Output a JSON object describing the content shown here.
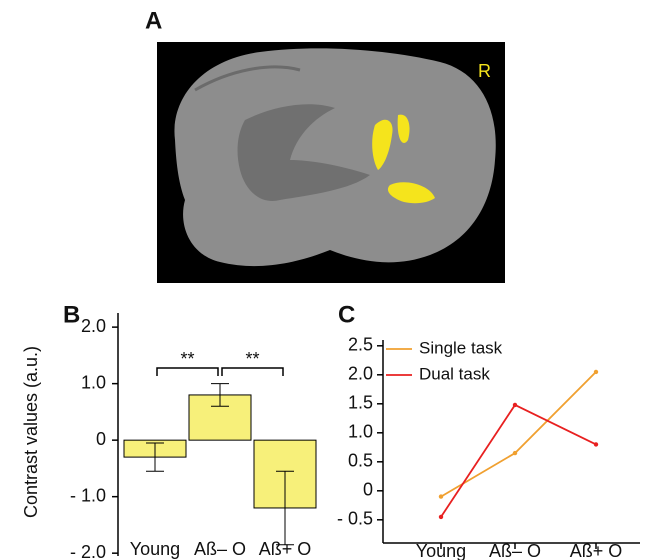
{
  "panel_labels": [
    "A",
    "B",
    "C"
  ],
  "brain_label": "R",
  "chart_data": [
    {
      "type": "bar",
      "ylabel": "Contrast values (a.u.)",
      "categories": [
        "Young",
        "Aß– O",
        "Aß+ O"
      ],
      "values": [
        -0.3,
        0.8,
        -1.2
      ],
      "errors": [
        0.25,
        0.2,
        0.65
      ],
      "color": "#f7f07a",
      "ylim": [
        -2.05,
        2.25
      ],
      "yticks": [
        {
          "value": 2,
          "label": "2.0"
        },
        {
          "value": 1,
          "label": "1.0"
        },
        0,
        {
          "value": -1,
          "label": "- 1.0"
        },
        {
          "value": -2,
          "label": "- 2.0"
        }
      ],
      "significance": [
        {
          "from": 0,
          "to": 1,
          "label": "**"
        },
        {
          "from": 1,
          "to": 2,
          "label": "**"
        }
      ]
    },
    {
      "type": "line",
      "categories": [
        "Young",
        "Aß– O",
        "Aß+ O"
      ],
      "series": [
        {
          "name": "Single task",
          "color": "#f0a030",
          "values": [
            -0.1,
            0.65,
            2.05
          ]
        },
        {
          "name": "Dual task",
          "color": "#e82020",
          "values": [
            -0.45,
            1.48,
            0.8
          ]
        }
      ],
      "ylim": [
        -0.9,
        2.6
      ],
      "yticks": [
        2.5,
        {
          "value": 2,
          "label": "2.0"
        },
        1.5,
        {
          "value": 1,
          "label": "1.0"
        },
        0.5,
        0,
        {
          "value": -0.5,
          "label": "- 0.5"
        }
      ],
      "legend": "upper left"
    }
  ]
}
